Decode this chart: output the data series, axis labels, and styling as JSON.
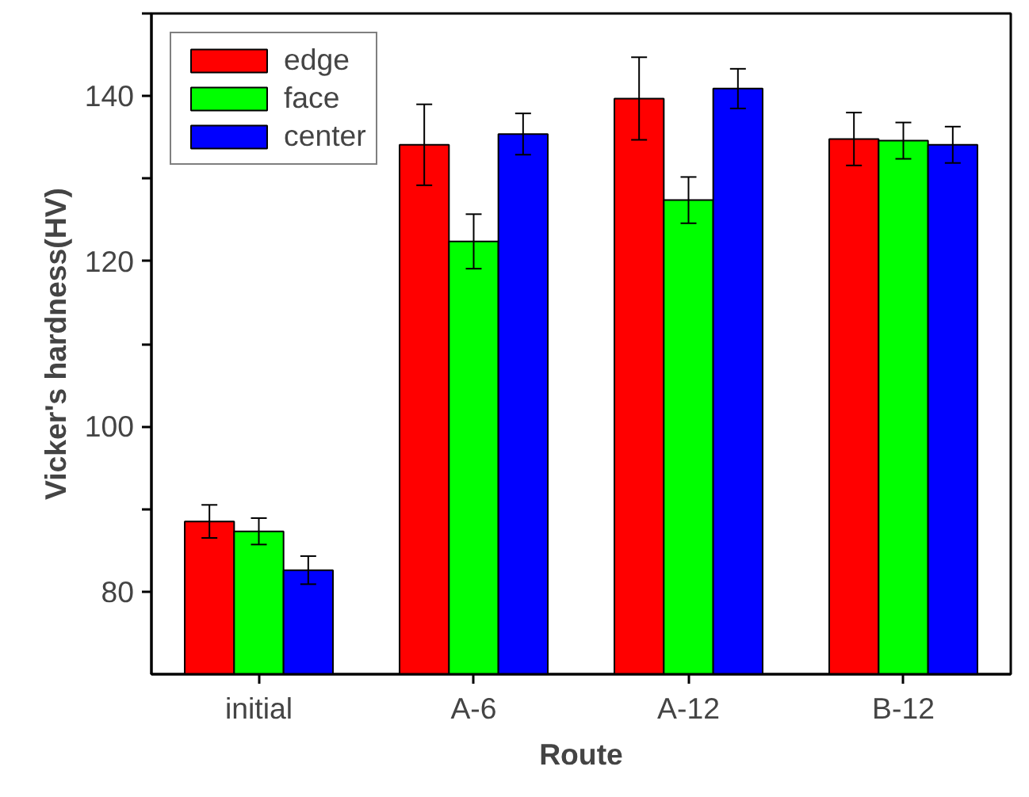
{
  "chart_data": {
    "type": "bar",
    "xlabel": "Route",
    "ylabel": "Vicker's hardness(HV)",
    "categories": [
      "initial",
      "A-6",
      "A-12",
      "B-12"
    ],
    "series": [
      {
        "name": "edge",
        "color": "#ff0000",
        "values": [
          88.5,
          134.1,
          139.7,
          134.8
        ],
        "errors": [
          2.0,
          4.9,
          5.0,
          3.2
        ]
      },
      {
        "name": "face",
        "color": "#00ff00",
        "values": [
          87.3,
          122.4,
          127.4,
          134.6
        ],
        "errors": [
          1.6,
          3.3,
          2.8,
          2.2
        ]
      },
      {
        "name": "center",
        "color": "#0000ff",
        "values": [
          82.6,
          135.4,
          140.9,
          134.1
        ],
        "errors": [
          1.7,
          2.5,
          2.4,
          2.2
        ]
      }
    ],
    "ylim": [
      70,
      150
    ],
    "yticks": [
      80,
      {
        "value": 90,
        "label": null
      },
      100,
      {
        "value": 110,
        "label": null
      },
      120,
      {
        "value": 130,
        "label": null
      },
      140,
      {
        "value": 150,
        "label": null
      }
    ],
    "grid": false,
    "legend": "top left"
  }
}
